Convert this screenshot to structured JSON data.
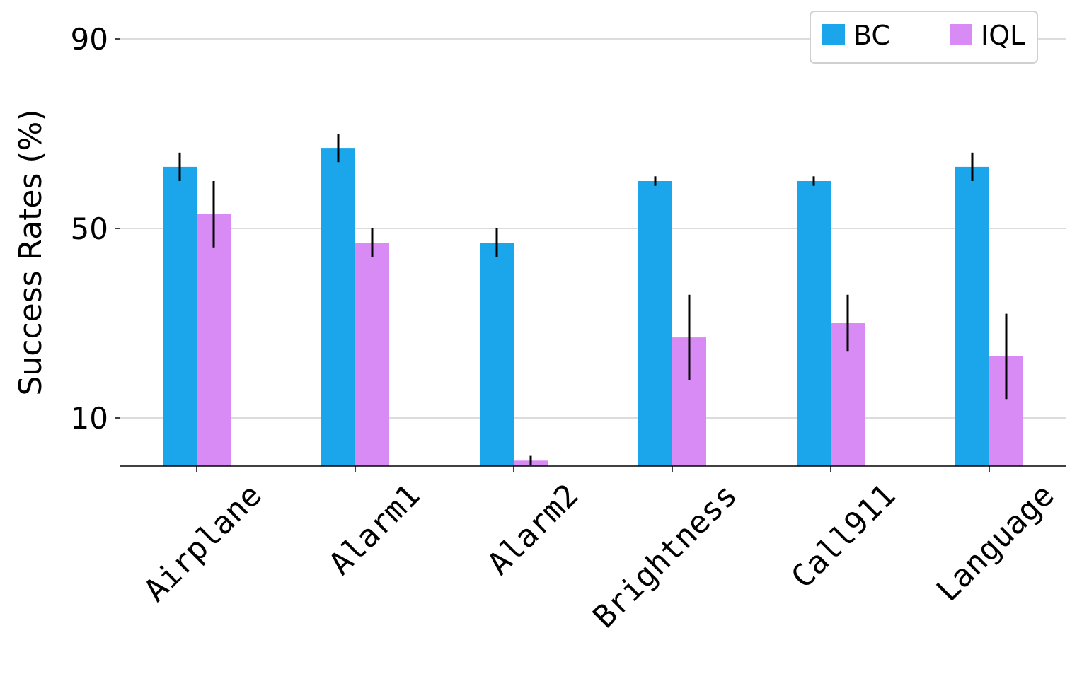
{
  "chart_data": {
    "type": "bar",
    "title": "",
    "xlabel": "",
    "ylabel": "Success Rates (%)",
    "ylim": [
      0,
      90
    ],
    "yticks": [
      10,
      50,
      90
    ],
    "grid": "horizontal",
    "legend_position": "top-right",
    "categories": [
      "Airplane",
      "Alarm1",
      "Alarm2",
      "Brightness",
      "Call911",
      "Language"
    ],
    "series": [
      {
        "name": "BC",
        "color": "#1ba5ea",
        "values": [
          63,
          67,
          47,
          60,
          60,
          63
        ],
        "error": [
          3,
          3,
          3,
          1,
          1,
          3
        ]
      },
      {
        "name": "IQL",
        "color": "#d98bf5",
        "values": [
          53,
          47,
          1,
          27,
          30,
          23
        ],
        "error": [
          7,
          3,
          1,
          9,
          6,
          9
        ]
      }
    ]
  }
}
